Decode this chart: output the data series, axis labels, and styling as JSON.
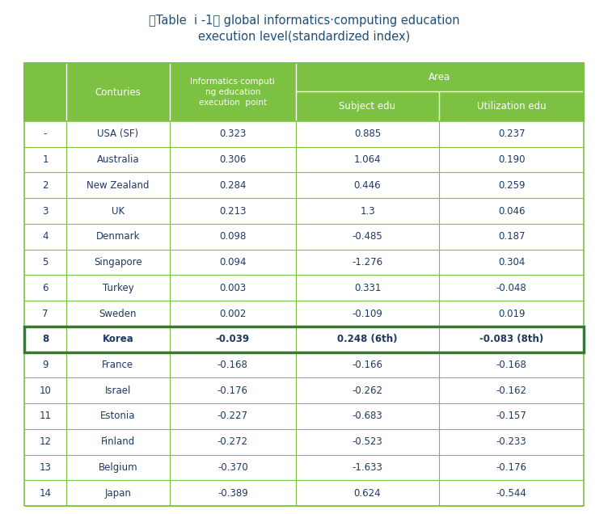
{
  "title_line1": "〈Table  i -1〉 global informatics·computing education",
  "title_line2": "execution level(standardized index)",
  "title_color": "#1f4e79",
  "header_bg": "#7dc142",
  "header_text_color": "#ffffff",
  "grid_color": "#7dc142",
  "body_text_color": "#1f3864",
  "korea_border_color": "#2e7d32",
  "area_header": "Area",
  "rows": [
    [
      "-",
      "USA (SF)",
      "0.323",
      "0.885",
      "0.237"
    ],
    [
      "1",
      "Australia",
      "0.306",
      "1.064",
      "0.190"
    ],
    [
      "2",
      "New Zealand",
      "0.284",
      "0.446",
      "0.259"
    ],
    [
      "3",
      "UK",
      "0.213",
      "1.3",
      "0.046"
    ],
    [
      "4",
      "Denmark",
      "0.098",
      "-0.485",
      "0.187"
    ],
    [
      "5",
      "Singapore",
      "0.094",
      "-1.276",
      "0.304"
    ],
    [
      "6",
      "Turkey",
      "0.003",
      "0.331",
      "-0.048"
    ],
    [
      "7",
      "Sweden",
      "0.002",
      "-0.109",
      "0.019"
    ],
    [
      "8",
      "Korea",
      "-0.039",
      "0.248 (6th)",
      "-0.083 (8th)"
    ],
    [
      "9",
      "France",
      "-0.168",
      "-0.166",
      "-0.168"
    ],
    [
      "10",
      "Israel",
      "-0.176",
      "-0.262",
      "-0.162"
    ],
    [
      "11",
      "Estonia",
      "-0.227",
      "-0.683",
      "-0.157"
    ],
    [
      "12",
      "Finland",
      "-0.272",
      "-0.523",
      "-0.233"
    ],
    [
      "13",
      "Belgium",
      "-0.370",
      "-1.633",
      "-0.176"
    ],
    [
      "14",
      "Japan",
      "-0.389",
      "0.624",
      "-0.544"
    ]
  ],
  "korea_row_index": 8,
  "fig_width": 7.52,
  "fig_height": 6.36,
  "dpi": 100
}
